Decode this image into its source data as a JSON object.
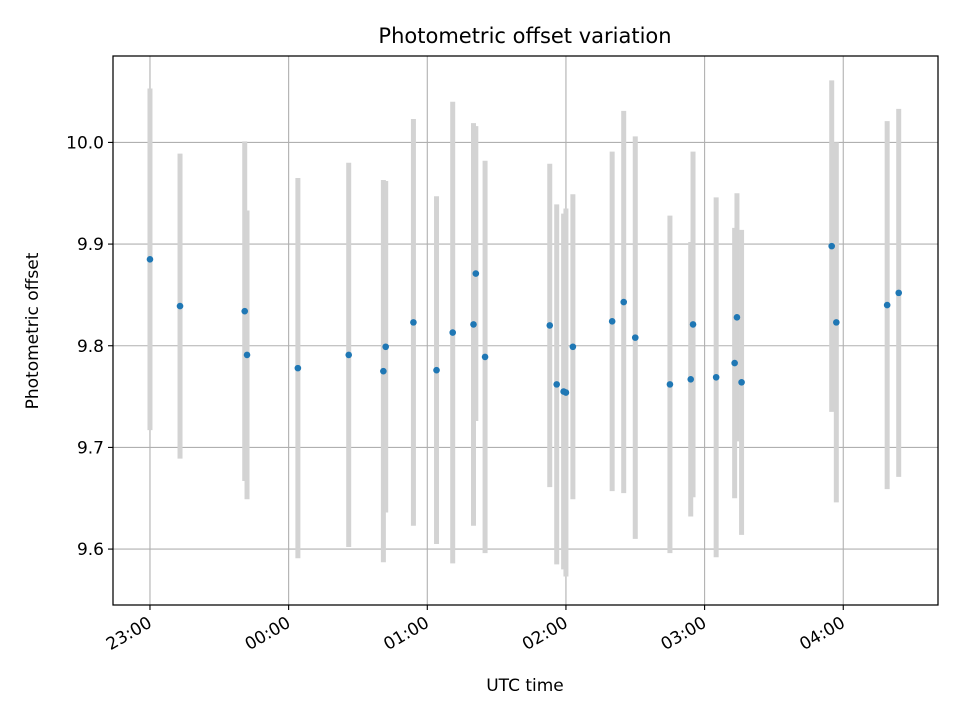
{
  "chart_data": {
    "type": "scatter",
    "title": "Photometric offset variation",
    "xlabel": "UTC time",
    "ylabel": "Photometric offset",
    "x_unit": "UTC time (HH:MM)",
    "xlim": [
      "22:44",
      "04:41"
    ],
    "ylim": [
      9.545,
      10.085
    ],
    "x_ticks": [
      "23:00",
      "00:00",
      "01:00",
      "02:00",
      "03:00",
      "04:00"
    ],
    "y_ticks": [
      "9.6",
      "9.7",
      "9.8",
      "9.9",
      "10.0"
    ],
    "grid": true,
    "marker_color": "#1f77b4",
    "errorbar_color": "#d3d3d3",
    "points": [
      {
        "x": "23:00",
        "y": 9.885,
        "err": 0.168
      },
      {
        "x": "23:13",
        "y": 9.839,
        "err": 0.15
      },
      {
        "x": "23:41",
        "y": 9.834,
        "err": 0.167
      },
      {
        "x": "23:42",
        "y": 9.791,
        "err": 0.142
      },
      {
        "x": "00:04",
        "y": 9.778,
        "err": 0.187
      },
      {
        "x": "00:26",
        "y": 9.791,
        "err": 0.189
      },
      {
        "x": "00:41",
        "y": 9.775,
        "err": 0.188
      },
      {
        "x": "00:42",
        "y": 9.799,
        "err": 0.163
      },
      {
        "x": "00:54",
        "y": 9.823,
        "err": 0.2
      },
      {
        "x": "01:04",
        "y": 9.776,
        "err": 0.171
      },
      {
        "x": "01:11",
        "y": 9.813,
        "err": 0.227
      },
      {
        "x": "01:20",
        "y": 9.821,
        "err": 0.198
      },
      {
        "x": "01:21",
        "y": 9.871,
        "err": 0.145
      },
      {
        "x": "01:25",
        "y": 9.789,
        "err": 0.193
      },
      {
        "x": "01:53",
        "y": 9.82,
        "err": 0.159
      },
      {
        "x": "01:56",
        "y": 9.762,
        "err": 0.177
      },
      {
        "x": "01:59",
        "y": 9.755,
        "err": 0.175
      },
      {
        "x": "02:00",
        "y": 9.754,
        "err": 0.181
      },
      {
        "x": "02:03",
        "y": 9.799,
        "err": 0.15
      },
      {
        "x": "02:20",
        "y": 9.824,
        "err": 0.167
      },
      {
        "x": "02:25",
        "y": 9.843,
        "err": 0.188
      },
      {
        "x": "02:30",
        "y": 9.808,
        "err": 0.198
      },
      {
        "x": "02:45",
        "y": 9.762,
        "err": 0.166
      },
      {
        "x": "02:54",
        "y": 9.767,
        "err": 0.135
      },
      {
        "x": "02:55",
        "y": 9.821,
        "err": 0.17
      },
      {
        "x": "03:05",
        "y": 9.769,
        "err": 0.177
      },
      {
        "x": "03:13",
        "y": 9.783,
        "err": 0.133
      },
      {
        "x": "03:14",
        "y": 9.828,
        "err": 0.122
      },
      {
        "x": "03:16",
        "y": 9.764,
        "err": 0.15
      },
      {
        "x": "03:55",
        "y": 9.898,
        "err": 0.163
      },
      {
        "x": "03:57",
        "y": 9.823,
        "err": 0.177
      },
      {
        "x": "04:19",
        "y": 9.84,
        "err": 0.181
      },
      {
        "x": "04:24",
        "y": 9.852,
        "err": 0.181
      }
    ]
  }
}
